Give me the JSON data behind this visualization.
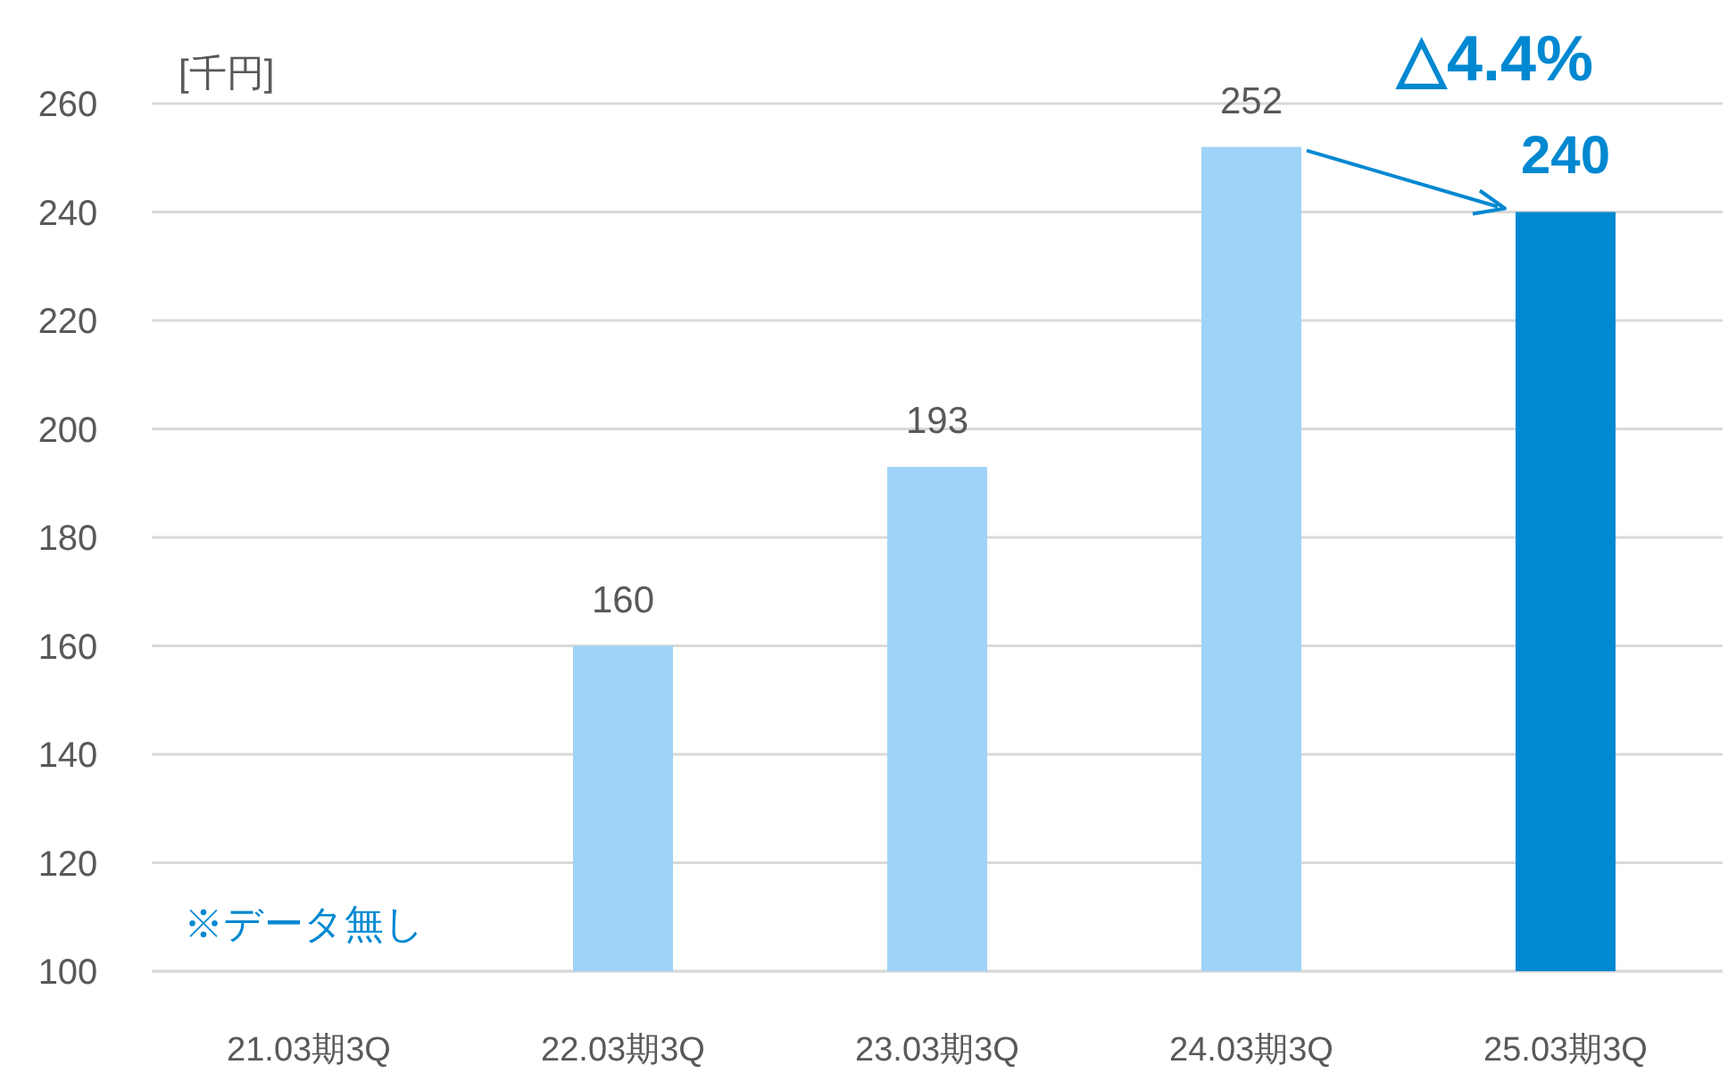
{
  "chart_data": {
    "type": "bar",
    "ylabel": "[千円]",
    "categories": [
      "21.03期3Q",
      "22.03期3Q",
      "23.03期3Q",
      "24.03期3Q",
      "25.03期3Q"
    ],
    "values": [
      null,
      160,
      193,
      252,
      240
    ],
    "colors": [
      null,
      "#9fd3f7",
      "#9fd3f7",
      "#9fd3f7",
      "#0088d1"
    ],
    "value_labels": [
      null,
      "160",
      "193",
      "252",
      "240"
    ],
    "ylim": [
      100,
      260
    ],
    "yticks": [
      100,
      120,
      140,
      160,
      180,
      200,
      220,
      240,
      260
    ],
    "grid": "y",
    "annotations": [
      "※データ無し",
      "△4.4%"
    ]
  }
}
